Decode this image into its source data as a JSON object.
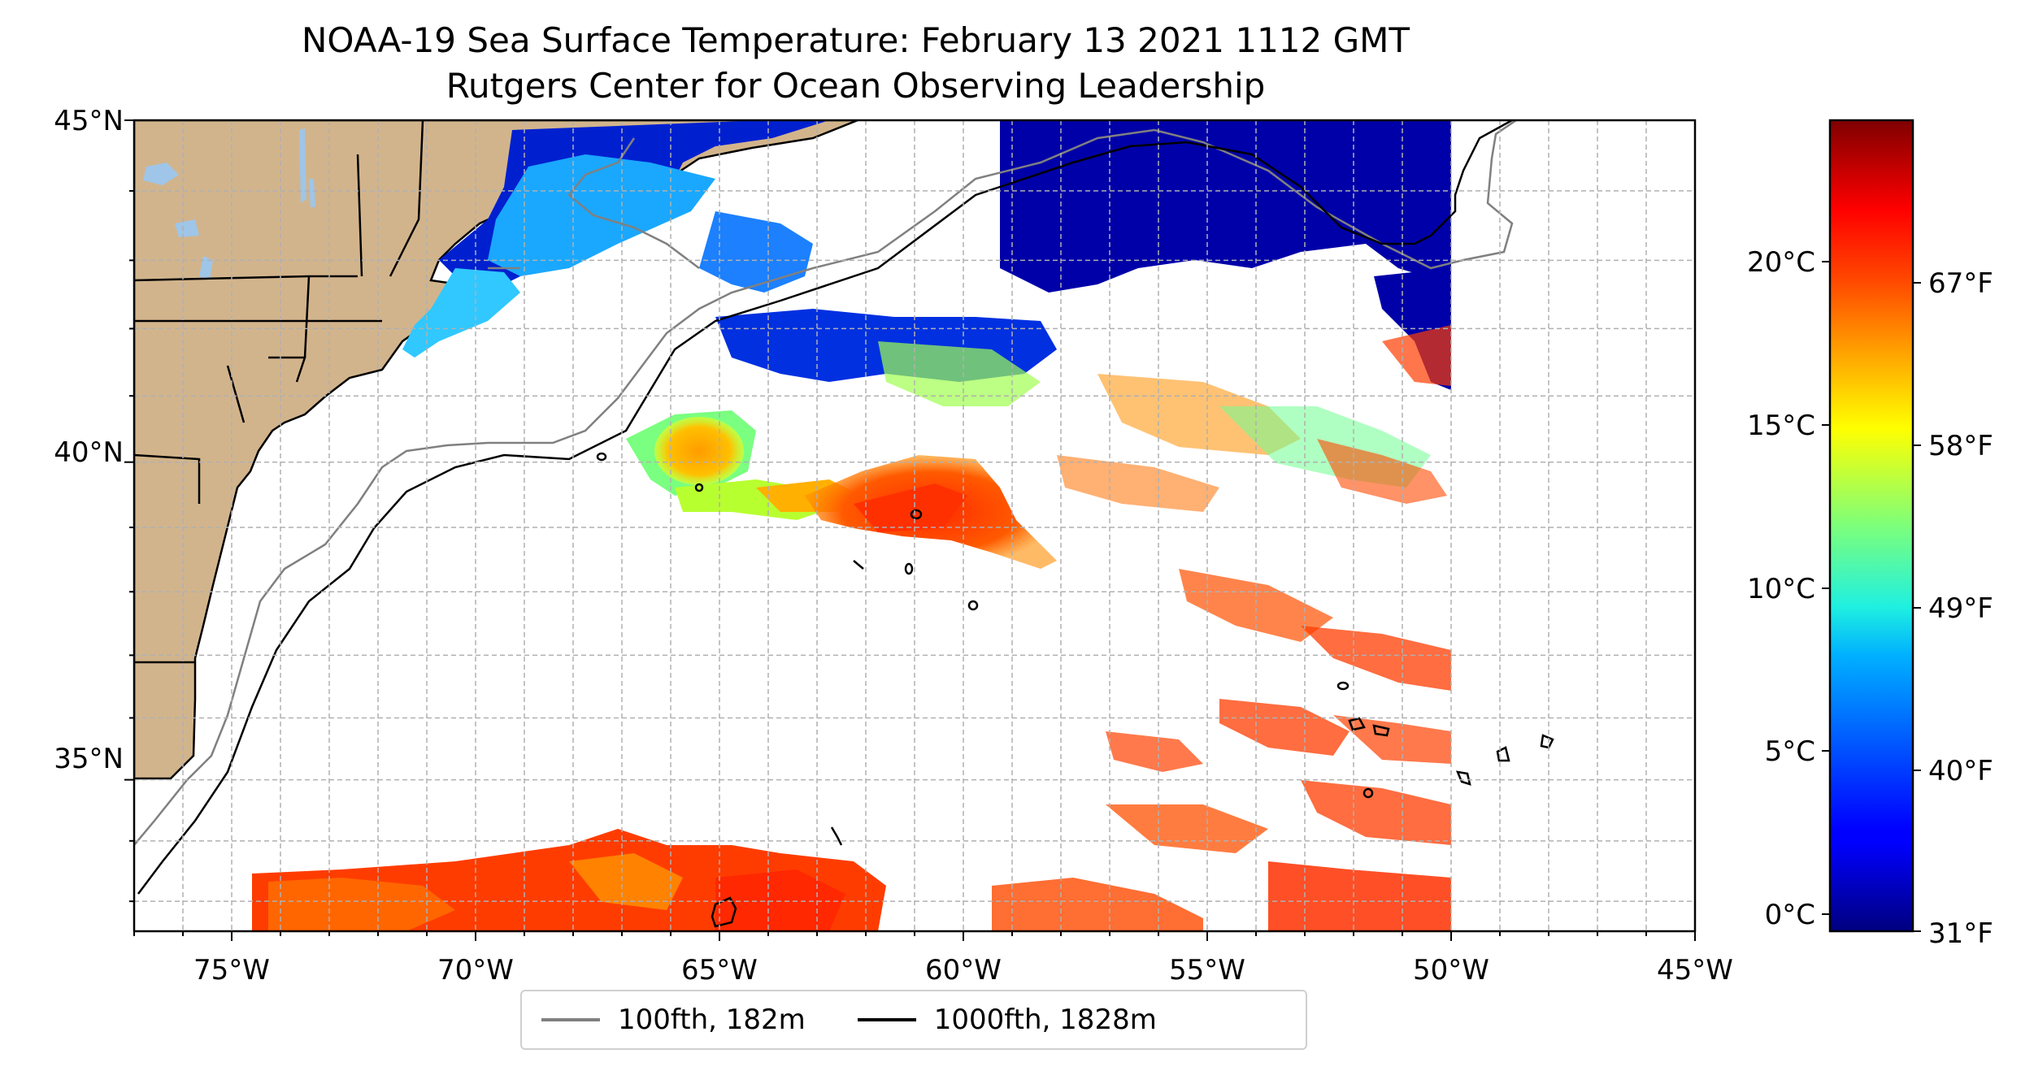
{
  "title": {
    "line1": "NOAA-19 Sea Surface Temperature: February 13 2021 1112 GMT",
    "line2": "Rutgers Center for Ocean Observing Leadership"
  },
  "map": {
    "lon_range": [
      -77,
      -45
    ],
    "lat_range": [
      32.5,
      45
    ],
    "lon_ticks": [
      "75°W",
      "70°W",
      "65°W",
      "60°W",
      "55°W",
      "50°W",
      "45°W"
    ],
    "lat_ticks": [
      "45°N",
      "40°N",
      "35°N"
    ],
    "colors": {
      "land": "#d2b48c",
      "lakes": "#9fc5e8",
      "border": "#000000",
      "isobath_100fth": "#808080",
      "isobath_1000fth": "#000000",
      "gridline": "#b0b0b0"
    }
  },
  "legend": [
    {
      "label": "100fth, 182m",
      "color": "#808080"
    },
    {
      "label": "1000fth, 1828m",
      "color": "#000000"
    }
  ],
  "colorbar": {
    "colormap": "jet",
    "celsius_ticks": [
      "20°C",
      "15°C",
      "10°C",
      "5°C",
      "0°C"
    ],
    "fahrenheit_ticks": [
      "67°F",
      "58°F",
      "49°F",
      "40°F",
      "31°F"
    ]
  }
}
